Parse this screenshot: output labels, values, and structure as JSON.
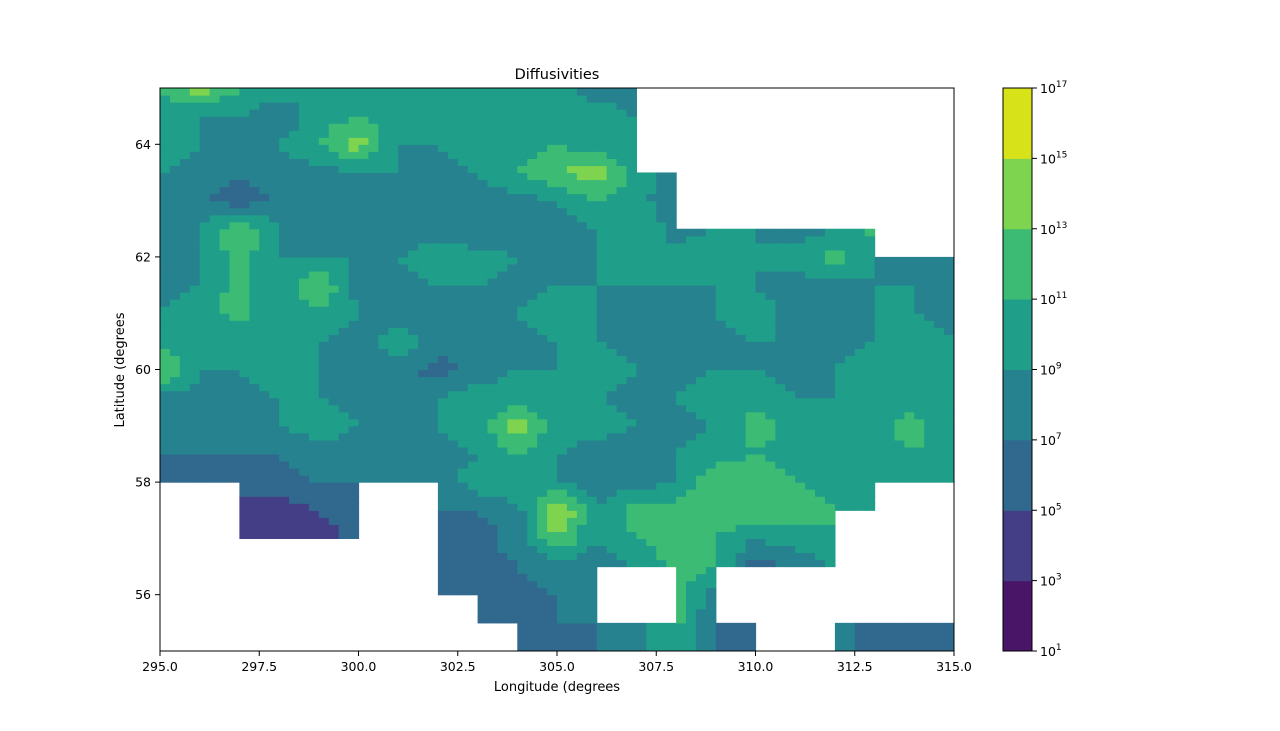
{
  "chart_data": {
    "type": "heatmap",
    "subtype": "filled-contour",
    "title": "Diffusivities",
    "xlabel": "Longitude (degrees",
    "ylabel": "Latitude (degrees",
    "xlim": [
      295.0,
      315.0
    ],
    "ylim": [
      55.0,
      65.0
    ],
    "x_ticks": [
      "295.0",
      "297.5",
      "300.0",
      "302.5",
      "305.0",
      "307.5",
      "310.0",
      "312.5",
      "315.0"
    ],
    "x_tick_values": [
      295.0,
      297.5,
      300.0,
      302.5,
      305.0,
      307.5,
      310.0,
      312.5,
      315.0
    ],
    "y_ticks": [
      "56",
      "58",
      "60",
      "62",
      "64"
    ],
    "y_tick_values": [
      56,
      58,
      60,
      62,
      64
    ],
    "colorbar": {
      "scale": "log",
      "base": "10",
      "exponents": [
        "1",
        "3",
        "5",
        "7",
        "9",
        "11",
        "13",
        "15",
        "17"
      ],
      "colors": [
        "#481567",
        "#433e85",
        "#31688e",
        "#26828e",
        "#1f9e89",
        "#3cbb75",
        "#7ed34f",
        "#d8e219"
      ]
    },
    "grid_lon": [
      295.0,
      296.0,
      297.0,
      298.0,
      299.0,
      300.0,
      301.0,
      302.0,
      303.0,
      304.0,
      305.0,
      306.0,
      307.0,
      308.0,
      309.0,
      310.0,
      311.0,
      312.0,
      313.0,
      314.0,
      315.0
    ],
    "grid_lat": [
      55.0,
      55.5,
      56.0,
      56.5,
      57.0,
      57.5,
      58.0,
      58.5,
      59.0,
      59.5,
      60.0,
      60.5,
      61.0,
      61.5,
      62.0,
      62.5,
      63.0,
      63.5,
      64.0,
      64.5,
      65.0
    ],
    "log10_values": [
      [
        null,
        null,
        null,
        null,
        null,
        null,
        null,
        null,
        null,
        6,
        6.5,
        7,
        8,
        11,
        7,
        6,
        5,
        8,
        6,
        6,
        7
      ],
      [
        null,
        null,
        null,
        null,
        null,
        null,
        null,
        null,
        6,
        6,
        7,
        7,
        7.5,
        11.5,
        7,
        6,
        null,
        8,
        6,
        5,
        6
      ],
      [
        null,
        null,
        null,
        null,
        null,
        null,
        null,
        6,
        6,
        6,
        7,
        7,
        null,
        12,
        8,
        null,
        null,
        null,
        9,
        null,
        7
      ],
      [
        null,
        null,
        null,
        null,
        null,
        null,
        6,
        6,
        6,
        7,
        8,
        7,
        9,
        12,
        11,
        6,
        7,
        9,
        null,
        null,
        9
      ],
      [
        null,
        null,
        4,
        4,
        4,
        6,
        null,
        6,
        6,
        8,
        13,
        9,
        11,
        12,
        11,
        9,
        10,
        11,
        null,
        null,
        8
      ],
      [
        null,
        null,
        4,
        4,
        5,
        6,
        null,
        7,
        7,
        8,
        16,
        9,
        12,
        12,
        12,
        13,
        12,
        11,
        9,
        null,
        9
      ],
      [
        6,
        6,
        6,
        6,
        7,
        7,
        8,
        8,
        10,
        11,
        9,
        8,
        8,
        9,
        13,
        12.5,
        11,
        10,
        9,
        9,
        9
      ],
      [
        7,
        7,
        7,
        7,
        8,
        8,
        8,
        8,
        9,
        11,
        9,
        8,
        7,
        9,
        10,
        11,
        10,
        9,
        10,
        11,
        9
      ],
      [
        8,
        8,
        8,
        9,
        10,
        9,
        8,
        9,
        10,
        14,
        10,
        10,
        9,
        8,
        9,
        12,
        10,
        9,
        10,
        12,
        9
      ],
      [
        8,
        8,
        8,
        9,
        9,
        8,
        8,
        9,
        10,
        10,
        10,
        9,
        8,
        9,
        10,
        10,
        9,
        9,
        10,
        10,
        9
      ],
      [
        14,
        9,
        9,
        10,
        9,
        8,
        8,
        6,
        8,
        9,
        9,
        10,
        9,
        8,
        9,
        9,
        8,
        9,
        10,
        9,
        9
      ],
      [
        10,
        9,
        9,
        9,
        9,
        8,
        10,
        8,
        9,
        8,
        9,
        9,
        8,
        9,
        8,
        9,
        9,
        8,
        9,
        10,
        9
      ],
      [
        9,
        10,
        12,
        9,
        11,
        9,
        8,
        8,
        8,
        9,
        10,
        9,
        8,
        8,
        9,
        10,
        8,
        8,
        9,
        9,
        8
      ],
      [
        8,
        9,
        12,
        9,
        13,
        8,
        8,
        9,
        9,
        8,
        9,
        9,
        9,
        9,
        9,
        9,
        8,
        8,
        9,
        9,
        8
      ],
      [
        7,
        9,
        12,
        9,
        9,
        9,
        9,
        10,
        10,
        9,
        8,
        9,
        9,
        10,
        11,
        9,
        10,
        12,
        9,
        8,
        8
      ],
      [
        7,
        9,
        13,
        9,
        8,
        7,
        8,
        8,
        7,
        8,
        8,
        9,
        11,
        8,
        9,
        9,
        8,
        9,
        12,
        null,
        null
      ],
      [
        7,
        7,
        6,
        7,
        8,
        8,
        9,
        7,
        8,
        8,
        9,
        11,
        10,
        7,
        null,
        null,
        null,
        null,
        null,
        null,
        null
      ],
      [
        9,
        8,
        7,
        8,
        8,
        9,
        9,
        8,
        9,
        11,
        13,
        14,
        10,
        8,
        null,
        null,
        null,
        null,
        null,
        null,
        null
      ],
      [
        10,
        9,
        8,
        9,
        11,
        14,
        9,
        9,
        10,
        9,
        11,
        10,
        10,
        null,
        null,
        null,
        null,
        null,
        null,
        null,
        null
      ],
      [
        10,
        9,
        9,
        7,
        10,
        11,
        10,
        9,
        9,
        10,
        11,
        10,
        9,
        null,
        null,
        null,
        null,
        null,
        null,
        null,
        null
      ],
      [
        11,
        14,
        11,
        10,
        11,
        10,
        10,
        10,
        9,
        10,
        10,
        8,
        8,
        null,
        null,
        null,
        null,
        null,
        null,
        null,
        null
      ]
    ]
  }
}
